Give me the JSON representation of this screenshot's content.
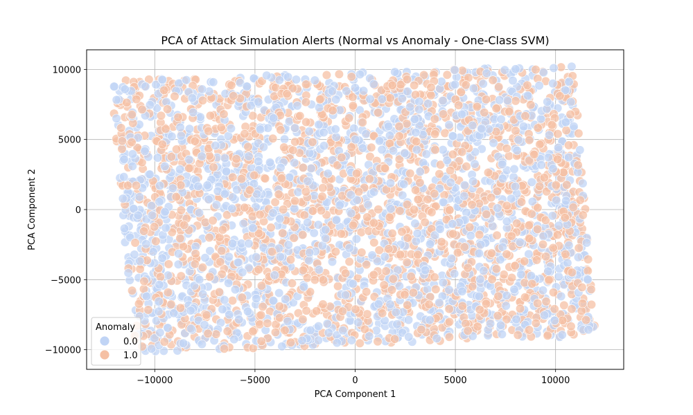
{
  "chart_data": {
    "type": "scatter",
    "title": "PCA of Attack Simulation Alerts (Normal vs Anomaly - One-Class SVM)",
    "xlabel": "PCA Component 1",
    "ylabel": "PCA Component 2",
    "xlim": [
      -13400,
      13400
    ],
    "ylim": [
      -11400,
      11400
    ],
    "xticks": [
      -10000,
      -5000,
      0,
      5000,
      10000
    ],
    "xtick_labels": [
      "−10000",
      "−5000",
      "0",
      "5000",
      "10000"
    ],
    "yticks": [
      -10000,
      -5000,
      0,
      5000,
      10000
    ],
    "ytick_labels": [
      "−10000",
      "−5000",
      "0",
      "5000",
      "10000"
    ],
    "grid": true,
    "legend": {
      "title": "Anomaly",
      "position": "lower-left",
      "entries": [
        {
          "label": "0.0",
          "color": "#c0d4f5"
        },
        {
          "label": "1.0",
          "color": "#f5c0a4"
        }
      ]
    },
    "point_cloud": {
      "shape": "tilted-rectangle",
      "corners": {
        "top_left": [
          -12200,
          9200
        ],
        "top_right": [
          10900,
          10300
        ],
        "bottom_right": [
          12000,
          -9000
        ],
        "bottom_left": [
          -11000,
          -10200
        ]
      },
      "mixing": "both classes uniformly interleaved across the region"
    },
    "series": [
      {
        "name": "0.0",
        "color": "#c0d4f5"
      },
      {
        "name": "1.0",
        "color": "#f5c0a4"
      }
    ]
  }
}
